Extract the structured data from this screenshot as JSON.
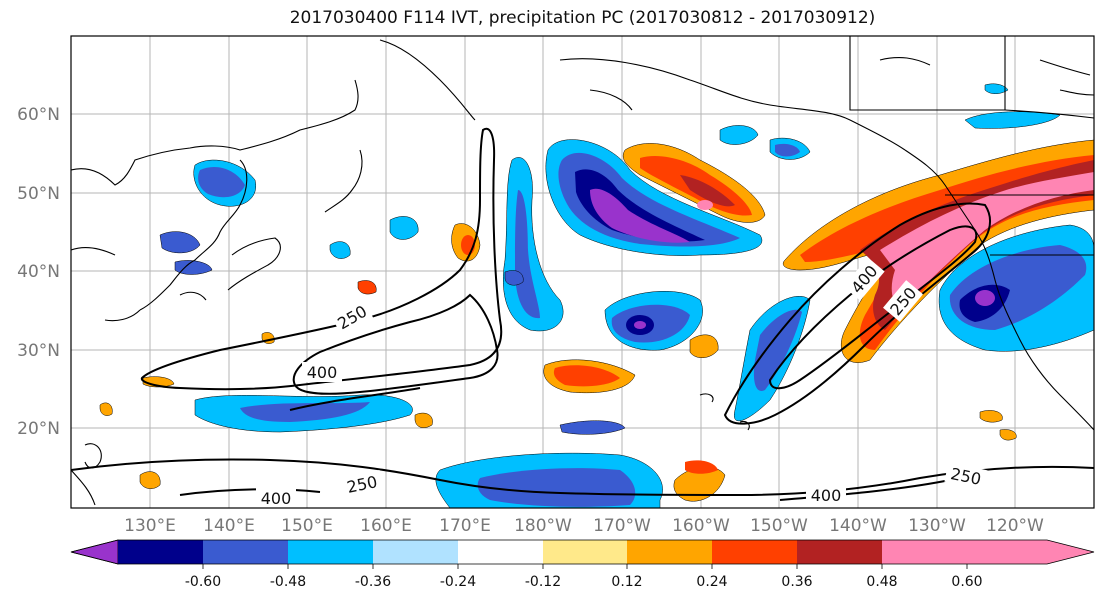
{
  "title": "2017030400 F114 IVT, precipitation PC (2017030812 - 2017030912)",
  "lat_labels": [
    "60°N",
    "50°N",
    "40°N",
    "30°N",
    "20°N"
  ],
  "lon_labels": [
    "130°E",
    "140°E",
    "150°E",
    "160°E",
    "170°E",
    "180°W",
    "170°W",
    "160°W",
    "150°W",
    "140°W",
    "130°W",
    "120°W"
  ],
  "contour_labels": [
    "250",
    "400",
    "400",
    "250",
    "250",
    "400",
    "250",
    "400"
  ],
  "colorbar": {
    "ticks": [
      "-0.60",
      "-0.48",
      "-0.36",
      "-0.24",
      "-0.12",
      "0.12",
      "0.24",
      "0.36",
      "0.48",
      "0.60"
    ],
    "colors": [
      "#9933cc",
      "#00008b",
      "#3a5bd0",
      "#00bfff",
      "#b0e2ff",
      "#ffffff",
      "#ffe98a",
      "#ffa500",
      "#ff4000",
      "#b22222",
      "#ff85b3"
    ]
  }
}
